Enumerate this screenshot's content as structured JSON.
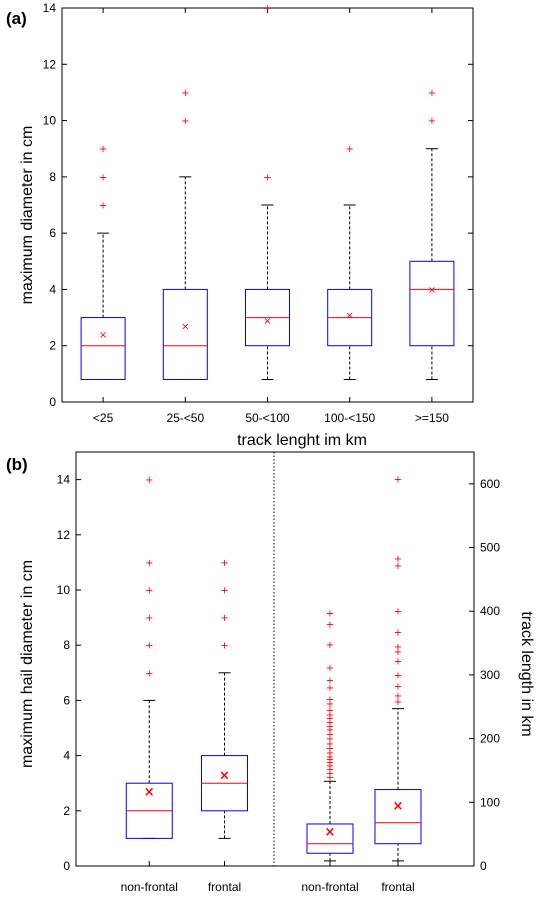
{
  "chart_data": [
    {
      "panel_label": "(a)",
      "type": "box",
      "xlabel": "track lenght im km",
      "ylabel": "maximum diameter in cm",
      "ylim": [
        0,
        14
      ],
      "yticks": [
        0,
        2,
        4,
        6,
        8,
        10,
        12,
        14
      ],
      "categories": [
        "<25",
        "25-<50",
        "50-<100",
        "100-<150",
        ">=150"
      ],
      "boxes": [
        {
          "category": "<25",
          "whisker_low": 0.8,
          "q1": 0.8,
          "median": 2,
          "q3": 3,
          "whisker_high": 6,
          "mean": 2.4,
          "outliers": [
            7,
            8,
            9
          ]
        },
        {
          "category": "25-<50",
          "whisker_low": 0.8,
          "q1": 0.8,
          "median": 2,
          "q3": 4,
          "whisker_high": 8,
          "mean": 2.7,
          "outliers": [
            10,
            11
          ]
        },
        {
          "category": "50-<100",
          "whisker_low": 0.8,
          "q1": 2,
          "median": 3,
          "q3": 4,
          "whisker_high": 7,
          "mean": 2.9,
          "outliers": [
            8,
            14
          ]
        },
        {
          "category": "100-<150",
          "whisker_low": 0.8,
          "q1": 2,
          "median": 3,
          "q3": 4,
          "whisker_high": 7,
          "mean": 3.1,
          "outliers": [
            9
          ]
        },
        {
          "category": ">=150",
          "whisker_low": 0.8,
          "q1": 2,
          "median": 4,
          "q3": 5,
          "whisker_high": 9,
          "mean": 4.0,
          "outliers": [
            10,
            11
          ]
        }
      ],
      "colors": {
        "box": "#0000ff",
        "median": "#ff0000",
        "mean": "#ff0000",
        "outlier": "#ff0000",
        "whisker": "#000000"
      }
    },
    {
      "panel_label": "(b)",
      "type": "box",
      "ylabel_left": "maximum hail diameter in cm",
      "ylabel_right": "track length in km",
      "ylim_left": [
        0,
        15
      ],
      "yticks_left": [
        0,
        2,
        4,
        6,
        8,
        10,
        12,
        14
      ],
      "ylim_right": [
        0,
        650
      ],
      "yticks_right": [
        0,
        100,
        200,
        300,
        400,
        500,
        600
      ],
      "categories": [
        "non-frontal",
        "frontal",
        "non-frontal",
        "frontal"
      ],
      "divider": "dotted line between left and right groups",
      "boxes": [
        {
          "category": "non-frontal",
          "axis": "left",
          "whisker_low": 1,
          "q1": 1,
          "median": 2,
          "q3": 3,
          "whisker_high": 6,
          "mean": 2.7,
          "outliers": [
            7,
            8,
            9,
            10,
            11,
            14
          ]
        },
        {
          "category": "frontal",
          "axis": "left",
          "whisker_low": 1,
          "q1": 2,
          "median": 3,
          "q3": 4,
          "whisker_high": 7,
          "mean": 3.3,
          "outliers": [
            8,
            9,
            10,
            11
          ]
        },
        {
          "category": "non-frontal",
          "axis": "right",
          "whisker_low": 8,
          "q1": 20,
          "median": 35,
          "q3": 66,
          "whisker_high": 133,
          "mean": 54,
          "outliers": [
            140,
            146,
            152,
            158,
            163,
            168,
            172,
            178,
            185,
            192,
            200,
            207,
            214,
            220,
            226,
            232,
            238,
            245,
            255,
            262,
            280,
            292,
            312,
            348,
            380,
            397
          ]
        },
        {
          "category": "frontal",
          "axis": "right",
          "whisker_low": 8,
          "q1": 35,
          "median": 68,
          "q3": 120,
          "whisker_high": 247,
          "mean": 95,
          "outliers": [
            258,
            268,
            283,
            300,
            322,
            337,
            345,
            367,
            400,
            472,
            483,
            608
          ]
        }
      ],
      "colors": {
        "box": "#0000ff",
        "median": "#ff0000",
        "mean": "#ff0000",
        "outlier": "#ff0000",
        "whisker": "#000000"
      }
    }
  ]
}
